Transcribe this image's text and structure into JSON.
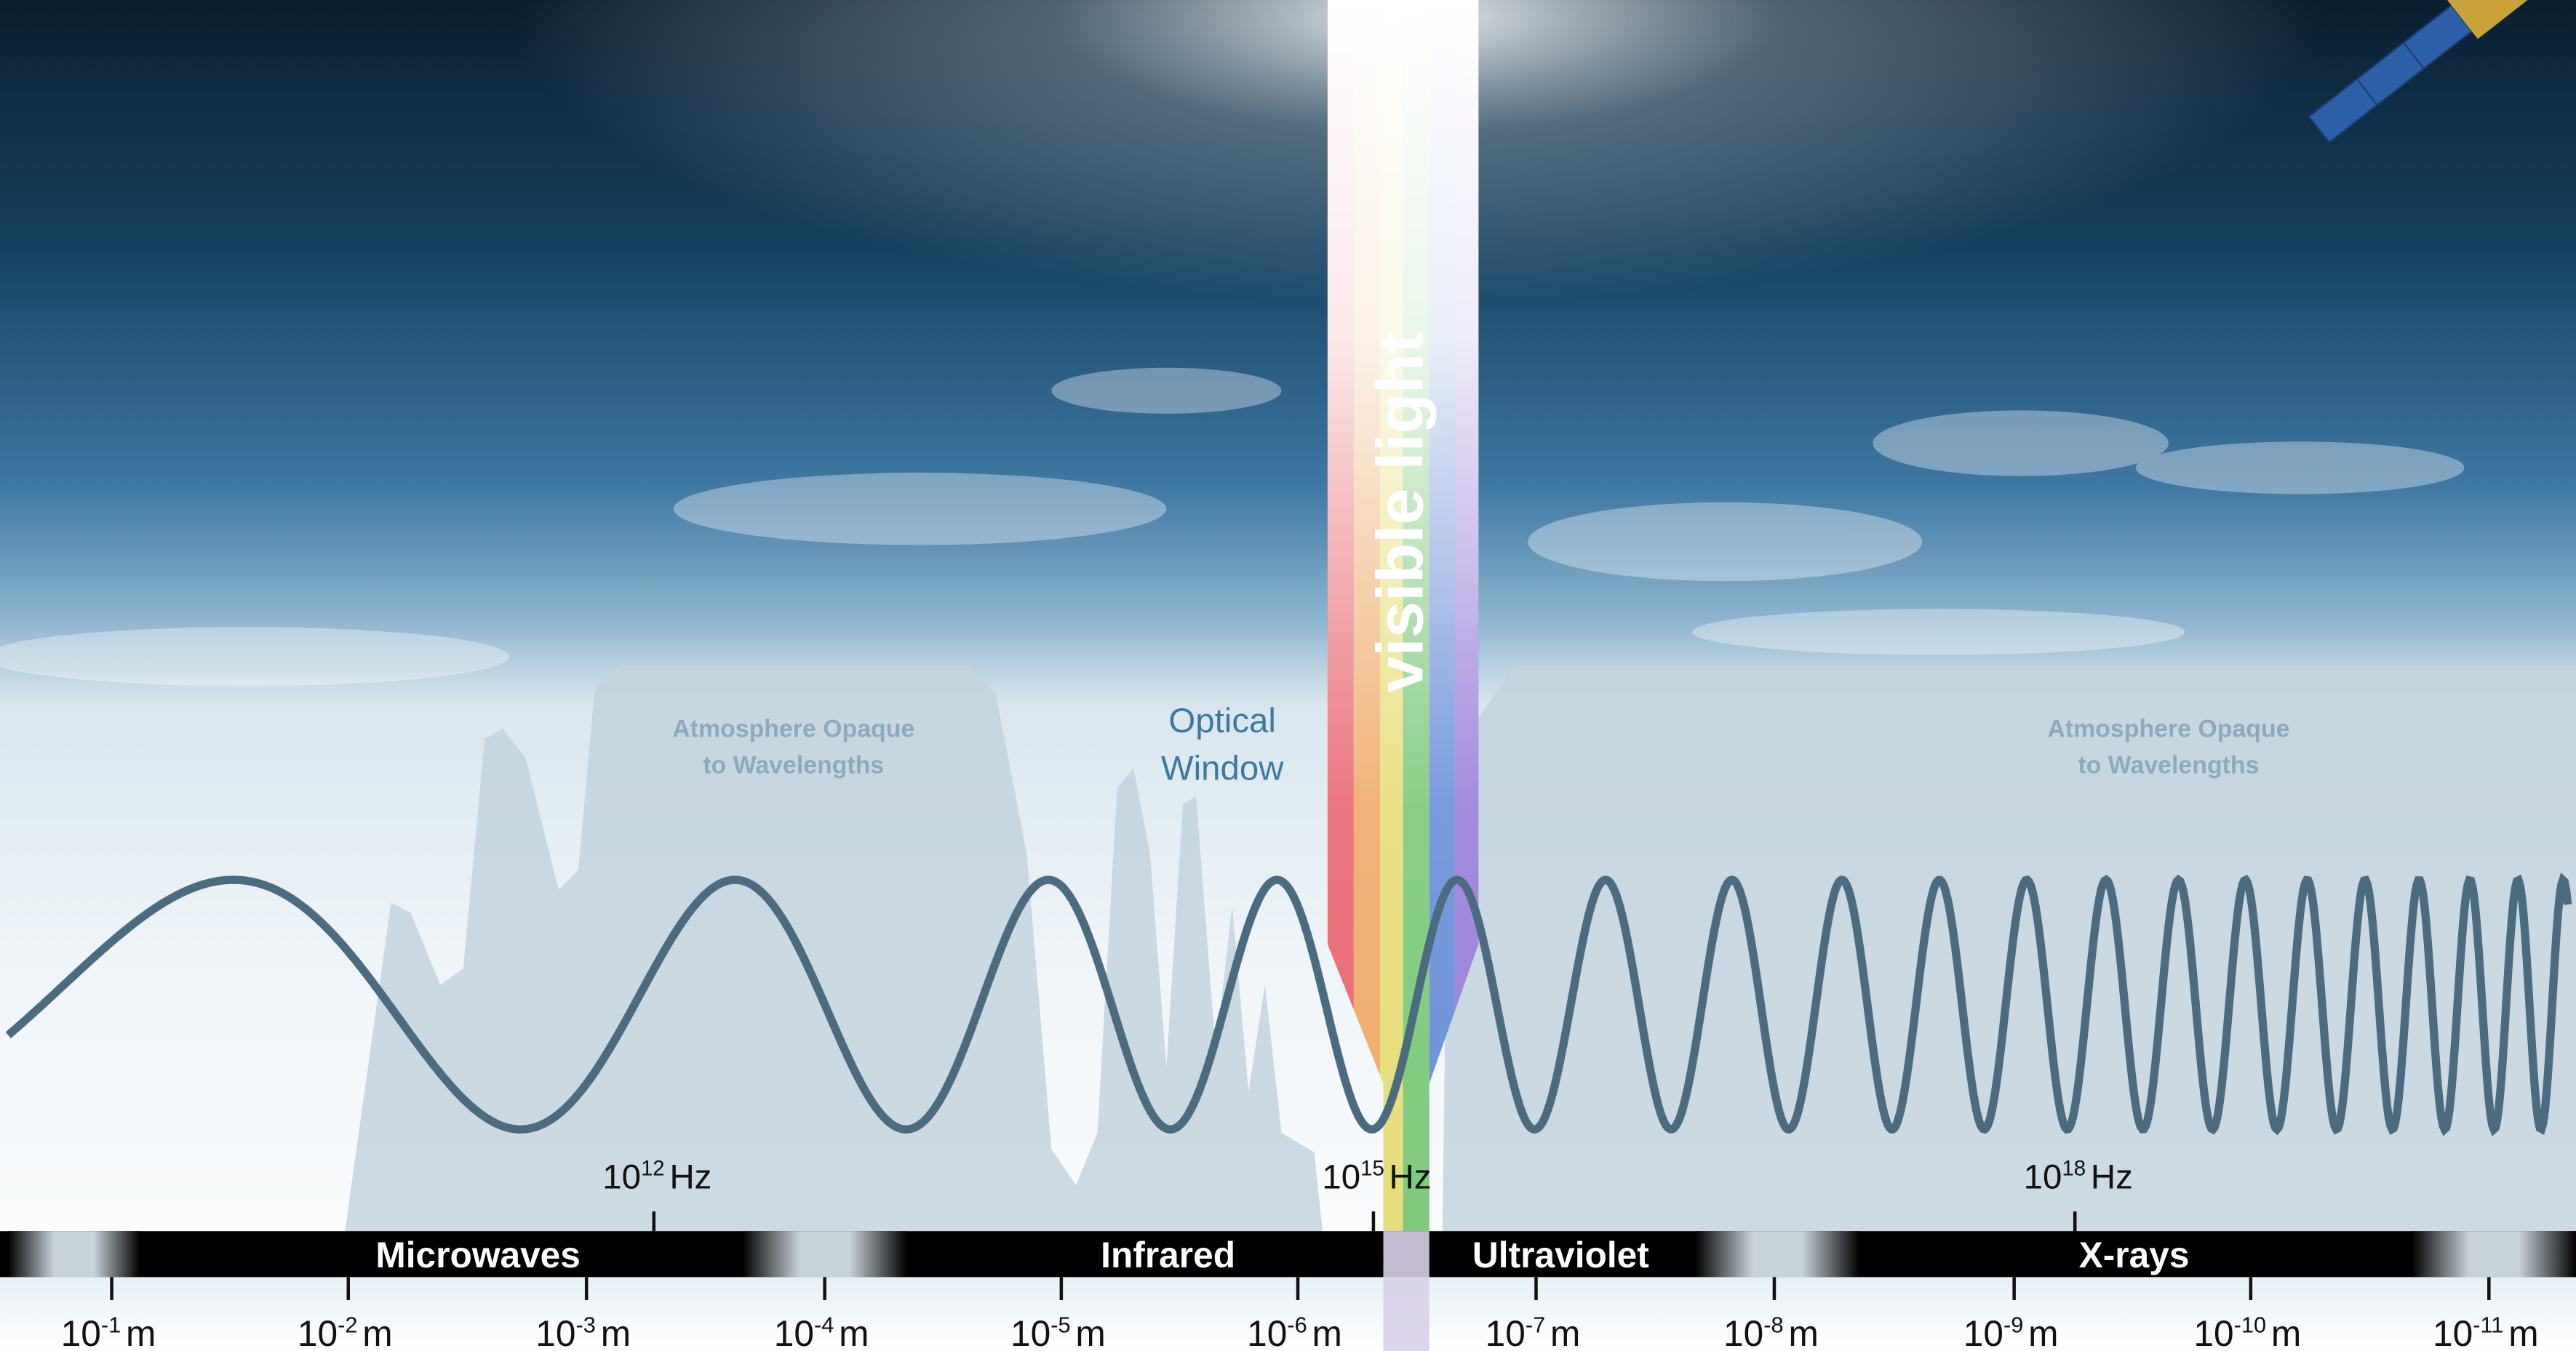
{
  "annotations": {
    "opaque_left": [
      "Atmosphere Opaque",
      "to Wavelengths"
    ],
    "optical_window": [
      "Optical",
      "Window"
    ],
    "opaque_right": [
      "Atmosphere Opaque",
      "to Wavelengths"
    ],
    "visible_light": "visible light"
  },
  "frequencies": [
    {
      "base": "10",
      "exponent": "12",
      "unit": "Hz"
    },
    {
      "base": "10",
      "exponent": "15",
      "unit": "Hz"
    },
    {
      "base": "10",
      "exponent": "18",
      "unit": "Hz"
    }
  ],
  "bands": [
    "Microwaves",
    "Infrared",
    "Ultraviolet",
    "X-rays"
  ],
  "wavelengths": [
    {
      "base": "10",
      "exponent": "-1",
      "unit": "m"
    },
    {
      "base": "10",
      "exponent": "-2",
      "unit": "m"
    },
    {
      "base": "10",
      "exponent": "-3",
      "unit": "m"
    },
    {
      "base": "10",
      "exponent": "-4",
      "unit": "m"
    },
    {
      "base": "10",
      "exponent": "-5",
      "unit": "m"
    },
    {
      "base": "10",
      "exponent": "-6",
      "unit": "m"
    },
    {
      "base": "10",
      "exponent": "-7",
      "unit": "m"
    },
    {
      "base": "10",
      "exponent": "-8",
      "unit": "m"
    },
    {
      "base": "10",
      "exponent": "-9",
      "unit": "m"
    },
    {
      "base": "10",
      "exponent": "-10",
      "unit": "m"
    },
    {
      "base": "10",
      "exponent": "-11",
      "unit": "m"
    }
  ]
}
